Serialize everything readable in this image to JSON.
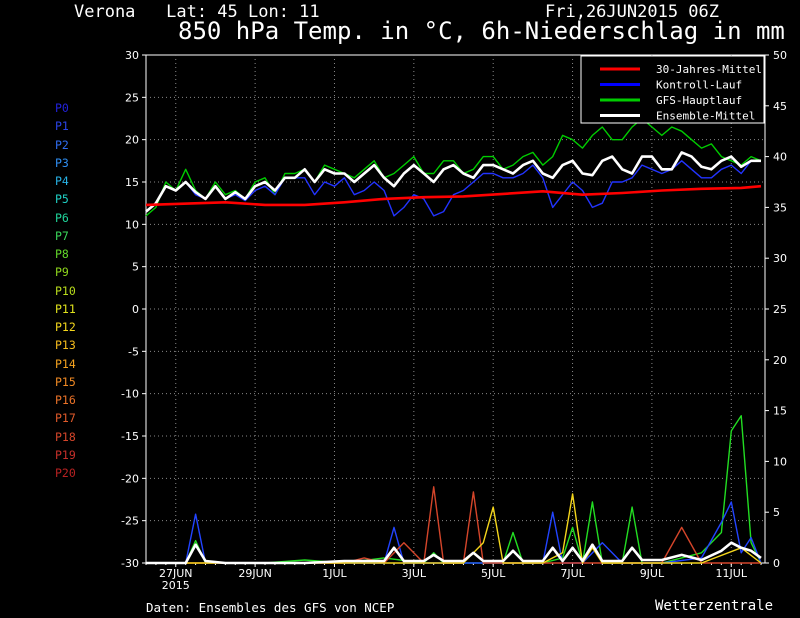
{
  "header": {
    "location": "Verona   Lat: 45 Lon: 11",
    "run": "Fri,26JUN2015 06Z",
    "title": "850 hPa Temp. in °C, 6h-Niederschlag in mm"
  },
  "footer": {
    "credit": "Daten: Ensembles des GFS von NCEP",
    "brand": "Wetterzentrale"
  },
  "members": [
    {
      "label": "P0",
      "color": "#2222dd"
    },
    {
      "label": "P1",
      "color": "#2a44e6"
    },
    {
      "label": "P2",
      "color": "#2f6cf0"
    },
    {
      "label": "P3",
      "color": "#2f8ef2"
    },
    {
      "label": "P4",
      "color": "#27b2e6"
    },
    {
      "label": "P5",
      "color": "#1fcfc4"
    },
    {
      "label": "P6",
      "color": "#1fd49a"
    },
    {
      "label": "P7",
      "color": "#3ad65a"
    },
    {
      "label": "P8",
      "color": "#62d62a"
    },
    {
      "label": "P9",
      "color": "#8ed61c"
    },
    {
      "label": "P10",
      "color": "#b9dc1c"
    },
    {
      "label": "P11",
      "color": "#e0e21c"
    },
    {
      "label": "P12",
      "color": "#f4d61c"
    },
    {
      "label": "P13",
      "color": "#f6bc1c"
    },
    {
      "label": "P14",
      "color": "#f4a21f"
    },
    {
      "label": "P15",
      "color": "#f08a24"
    },
    {
      "label": "P16",
      "color": "#ea7228"
    },
    {
      "label": "P17",
      "color": "#e05a2a"
    },
    {
      "label": "P18",
      "color": "#d4452a"
    },
    {
      "label": "P19",
      "color": "#c6302a"
    },
    {
      "label": "P20",
      "color": "#b82222"
    }
  ],
  "chart_data": {
    "type": "line",
    "title": "850 hPa Temp. in °C, 6h-Niederschlag in mm",
    "x_unit": "days since 26JUN2015 06Z",
    "x_ticks": [
      {
        "x": 0.75,
        "label": "27JUN",
        "sub": "2015"
      },
      {
        "x": 2.75,
        "label": "29JUN"
      },
      {
        "x": 4.75,
        "label": "1JUL"
      },
      {
        "x": 6.75,
        "label": "3JUL"
      },
      {
        "x": 8.75,
        "label": "5JUL"
      },
      {
        "x": 10.75,
        "label": "7JUL"
      },
      {
        "x": 12.75,
        "label": "9JUL"
      },
      {
        "x": 14.75,
        "label": "11JUL"
      }
    ],
    "xlim": [
      0,
      15.6
    ],
    "y_left": {
      "label": "850 hPa Temp. (°C)",
      "min": -30,
      "max": 30,
      "ticks": [
        -30,
        -25,
        -20,
        -15,
        -10,
        -5,
        0,
        5,
        10,
        15,
        20,
        25,
        30
      ]
    },
    "y_right": {
      "label": "6h-Niederschlag (mm)",
      "min": 0,
      "max": 50,
      "ticks": [
        0,
        5,
        10,
        15,
        20,
        25,
        30,
        35,
        40,
        45,
        50
      ]
    },
    "grid": true,
    "legend": {
      "position": "top-right",
      "entries": [
        {
          "name": "30-Jahres-Mittel",
          "color": "#ff0000"
        },
        {
          "name": "Kontroll-Lauf",
          "color": "#0000ff"
        },
        {
          "name": "GFS-Hauptlauf",
          "color": "#00cc00"
        },
        {
          "name": "Ensemble-Mittel",
          "color": "#ffffff"
        }
      ]
    },
    "temperature_series": [
      {
        "name": "30-Jahres-Mittel",
        "color": "#ff0000",
        "x": [
          0,
          2,
          3,
          4,
          5,
          6,
          7,
          8,
          9,
          10,
          11,
          12,
          13,
          14,
          15,
          15.5
        ],
        "y": [
          12.3,
          12.6,
          12.3,
          12.3,
          12.6,
          13.0,
          13.2,
          13.3,
          13.6,
          13.9,
          13.5,
          13.7,
          14.0,
          14.2,
          14.3,
          14.5
        ]
      },
      {
        "name": "GFS-Hauptlauf",
        "color": "#00cc00",
        "x": [
          0,
          0.25,
          0.5,
          0.75,
          1,
          1.25,
          1.5,
          1.75,
          2,
          2.25,
          2.5,
          2.75,
          3,
          3.25,
          3.5,
          3.75,
          4,
          4.25,
          4.5,
          4.75,
          5,
          5.25,
          5.5,
          5.75,
          6,
          6.25,
          6.5,
          6.75,
          7,
          7.25,
          7.5,
          7.75,
          8,
          8.25,
          8.5,
          8.75,
          9,
          9.25,
          9.5,
          9.75,
          10,
          10.25,
          10.5,
          10.75,
          11,
          11.25,
          11.5,
          11.75,
          12,
          12.25,
          12.5,
          12.75,
          13,
          13.25,
          13.5,
          13.75,
          14,
          14.25,
          14.5,
          14.75,
          15,
          15.25,
          15.5
        ],
        "y": [
          11.0,
          12.0,
          15.0,
          14.0,
          16.5,
          14.0,
          13.0,
          15.0,
          13.5,
          14.0,
          13.0,
          15.0,
          15.5,
          13.5,
          16.0,
          16.0,
          16.5,
          15.0,
          17.0,
          16.5,
          16.0,
          15.5,
          16.5,
          17.5,
          15.5,
          16.0,
          17.0,
          18.0,
          16.0,
          16.0,
          17.5,
          17.5,
          16.0,
          16.5,
          18.0,
          18.0,
          16.5,
          17.0,
          18.0,
          18.5,
          17.0,
          18.0,
          20.5,
          20.0,
          19.0,
          20.5,
          21.5,
          20.0,
          20.0,
          21.5,
          22.5,
          21.5,
          20.5,
          21.5,
          21.0,
          20.0,
          19.0,
          19.5,
          18.0,
          17.5,
          17.0,
          18.0,
          17.5
        ]
      },
      {
        "name": "Kontroll-Lauf",
        "color": "#2233ff",
        "x": [
          0,
          0.25,
          0.5,
          0.75,
          1,
          1.25,
          1.5,
          1.75,
          2,
          2.25,
          2.5,
          2.75,
          3,
          3.25,
          3.5,
          3.75,
          4,
          4.25,
          4.5,
          4.75,
          5,
          5.25,
          5.5,
          5.75,
          6,
          6.25,
          6.5,
          6.75,
          7,
          7.25,
          7.5,
          7.75,
          8,
          8.25,
          8.5,
          8.75,
          9,
          9.25,
          9.5,
          9.75,
          10,
          10.25,
          10.5,
          10.75,
          11,
          11.25,
          11.5,
          11.75,
          12,
          12.25,
          12.5,
          12.75,
          13,
          13.25,
          13.5,
          13.75,
          14,
          14.25,
          14.5,
          14.75,
          15,
          15.25,
          15.5
        ],
        "y": [
          11.5,
          12.5,
          14.5,
          14.0,
          15.0,
          13.5,
          13.0,
          14.5,
          13.0,
          13.5,
          12.8,
          14.0,
          14.5,
          13.5,
          15.5,
          15.5,
          15.5,
          13.5,
          15.0,
          14.5,
          15.5,
          13.5,
          14.0,
          15.0,
          14.0,
          11.0,
          12.0,
          13.5,
          13.0,
          11.0,
          11.5,
          13.5,
          14.0,
          15.0,
          16.0,
          16.0,
          15.5,
          15.5,
          16.0,
          17.0,
          15.5,
          12.0,
          13.5,
          15.0,
          14.0,
          12.0,
          12.5,
          15.0,
          15.0,
          15.5,
          17.0,
          16.5,
          16.0,
          16.5,
          17.5,
          16.5,
          15.5,
          15.5,
          16.5,
          17.0,
          16.0,
          17.5,
          17.5
        ]
      },
      {
        "name": "Ensemble-Mittel",
        "color": "#ffffff",
        "x": [
          0,
          0.25,
          0.5,
          0.75,
          1,
          1.25,
          1.5,
          1.75,
          2,
          2.25,
          2.5,
          2.75,
          3,
          3.25,
          3.5,
          3.75,
          4,
          4.25,
          4.5,
          4.75,
          5,
          5.25,
          5.5,
          5.75,
          6,
          6.25,
          6.5,
          6.75,
          7,
          7.25,
          7.5,
          7.75,
          8,
          8.25,
          8.5,
          8.75,
          9,
          9.25,
          9.5,
          9.75,
          10,
          10.25,
          10.5,
          10.75,
          11,
          11.25,
          11.5,
          11.75,
          12,
          12.25,
          12.5,
          12.75,
          13,
          13.25,
          13.5,
          13.75,
          14,
          14.25,
          14.5,
          14.75,
          15,
          15.25,
          15.5
        ],
        "y": [
          11.5,
          12.5,
          14.5,
          14.0,
          15.0,
          13.8,
          13.0,
          14.5,
          13.0,
          13.8,
          13.0,
          14.5,
          15.0,
          14.0,
          15.5,
          15.5,
          16.5,
          15.0,
          16.5,
          16.0,
          16.0,
          15.0,
          16.0,
          17.0,
          15.5,
          14.5,
          16.0,
          17.0,
          16.0,
          15.0,
          16.5,
          17.0,
          16.0,
          15.5,
          17.0,
          17.0,
          16.5,
          16.0,
          17.0,
          17.5,
          16.0,
          15.5,
          17.0,
          17.5,
          16.0,
          15.8,
          17.5,
          18.0,
          16.5,
          16.0,
          18.0,
          18.0,
          16.5,
          16.5,
          18.5,
          18.0,
          16.8,
          16.5,
          17.5,
          18.0,
          16.8,
          17.5,
          17.5
        ]
      }
    ],
    "precipitation_series": [
      {
        "name": "GFS-Hauptlauf",
        "color": "#22dd22",
        "x": [
          0,
          1,
          1.25,
          1.5,
          2,
          3,
          4,
          5,
          6,
          7,
          7.25,
          7.5,
          8,
          9,
          9.25,
          9.5,
          10,
          10.5,
          10.75,
          11,
          11.25,
          11.5,
          12,
          12.25,
          12.5,
          13,
          13.5,
          14,
          14.5,
          14.75,
          15,
          15.25,
          15.5
        ],
        "y": [
          0,
          0,
          2.2,
          0,
          0,
          0,
          0.3,
          0,
          0.5,
          0,
          1.0,
          0,
          0,
          0,
          3.0,
          0,
          0,
          0.5,
          3.5,
          0,
          6.0,
          0,
          0,
          5.5,
          0,
          0,
          0.5,
          1.0,
          3.0,
          13.0,
          14.5,
          2.0,
          0
        ]
      },
      {
        "name": "Kontroll-Lauf",
        "color": "#2244ff",
        "x": [
          0,
          1,
          1.25,
          1.5,
          2,
          6,
          6.25,
          6.5,
          7,
          8,
          9,
          10,
          10.25,
          10.5,
          11,
          11.5,
          12,
          13,
          14,
          14.5,
          14.75,
          15,
          15.25,
          15.5
        ],
        "y": [
          0,
          0,
          4.8,
          0,
          0,
          0,
          3.5,
          0,
          0,
          0,
          0,
          0,
          5.0,
          0,
          0,
          2.0,
          0,
          0,
          0.5,
          4.0,
          6.0,
          1.0,
          2.5,
          0
        ]
      },
      {
        "name": "P18",
        "color": "#d4452a",
        "x": [
          0,
          5,
          5.5,
          6,
          6.5,
          7,
          7.25,
          7.5,
          8,
          8.25,
          8.5,
          9,
          10,
          11,
          12,
          13,
          13.5,
          14,
          15,
          15.5
        ],
        "y": [
          0,
          0,
          0.5,
          0,
          2.0,
          0,
          7.5,
          0,
          0,
          7.0,
          0,
          0,
          0,
          0,
          0,
          0,
          3.5,
          0,
          0,
          0
        ]
      },
      {
        "name": "P12",
        "color": "#f4d61c",
        "x": [
          0,
          6,
          7,
          8,
          8.5,
          8.75,
          9,
          10,
          10.5,
          10.75,
          11,
          11.25,
          11.5,
          12,
          13,
          14,
          15,
          15.5
        ],
        "y": [
          0,
          0,
          0,
          0,
          2.0,
          5.5,
          0,
          0,
          1.0,
          6.8,
          0,
          1.5,
          0,
          0,
          0,
          0,
          1.5,
          0
        ]
      },
      {
        "name": "Ensemble-Mittel",
        "color": "#ffffff",
        "x": [
          0,
          1,
          1.25,
          1.5,
          2,
          3,
          4,
          5,
          6,
          6.25,
          6.5,
          7,
          7.25,
          7.5,
          8,
          8.25,
          8.5,
          9,
          9.25,
          9.5,
          10,
          10.25,
          10.5,
          10.75,
          11,
          11.25,
          11.5,
          12,
          12.25,
          12.5,
          13,
          13.5,
          14,
          14.5,
          14.75,
          15,
          15.25,
          15.5
        ],
        "y": [
          0,
          0,
          1.8,
          0.2,
          0,
          0,
          0,
          0.2,
          0.2,
          1.5,
          0.2,
          0.2,
          0.8,
          0.2,
          0.2,
          1.0,
          0.2,
          0.2,
          1.2,
          0.2,
          0.2,
          1.5,
          0.2,
          1.5,
          0.2,
          1.8,
          0.2,
          0.2,
          1.5,
          0.3,
          0.3,
          0.8,
          0.3,
          1.2,
          2.0,
          1.5,
          1.2,
          0.5
        ]
      }
    ]
  }
}
